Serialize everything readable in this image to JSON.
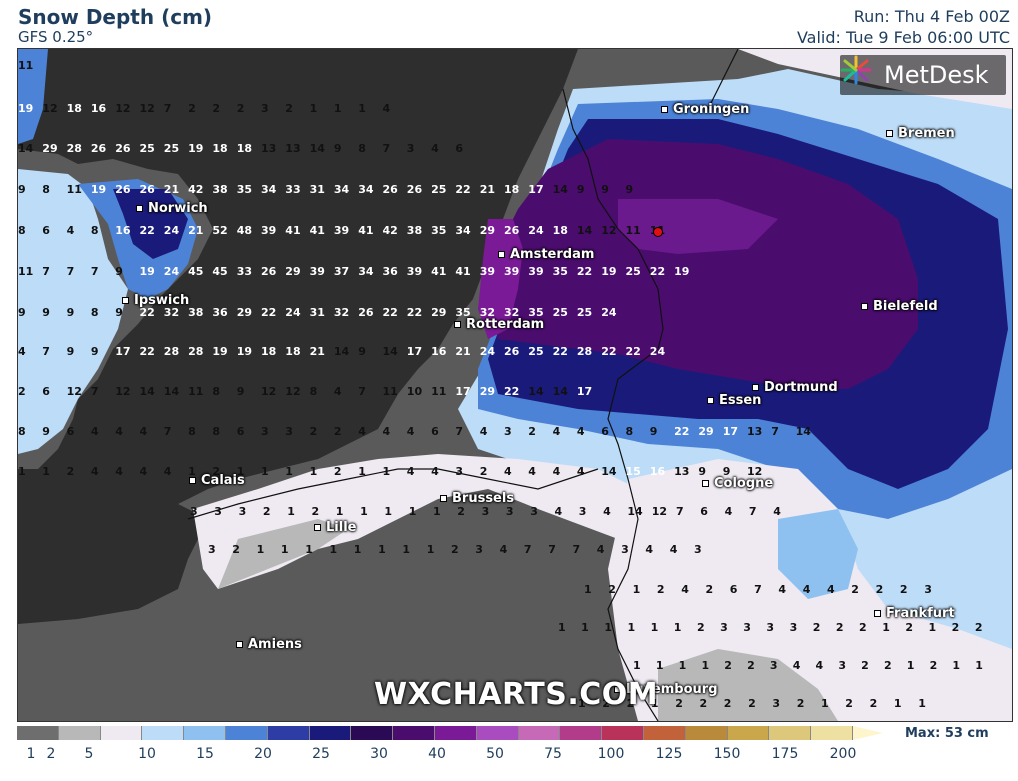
{
  "header": {
    "title": "Snow Depth (cm)",
    "subtitle": "GFS 0.25°",
    "run": "Run: Thu 4 Feb 00Z",
    "valid": "Valid: Tue 9 Feb 06:00 UTC"
  },
  "branding": {
    "logo_text": "MetDesk",
    "watermark": "WXCHARTS.COM",
    "logo_icon": "metdesk-burst-icon"
  },
  "cities": [
    {
      "name": "Groningen"
    },
    {
      "name": "Bremen"
    },
    {
      "name": "Norwich"
    },
    {
      "name": "Amsterdam"
    },
    {
      "name": "Ipswich"
    },
    {
      "name": "Rotterdam"
    },
    {
      "name": "Bielefeld"
    },
    {
      "name": "Dortmund"
    },
    {
      "name": "Essen"
    },
    {
      "name": "Calais"
    },
    {
      "name": "Brussels"
    },
    {
      "name": "Cologne"
    },
    {
      "name": "Lille"
    },
    {
      "name": "Frankfurt"
    },
    {
      "name": "Amiens"
    },
    {
      "name": "Luxembourg"
    }
  ],
  "colors": {
    "land_bare": "#5a5a5a",
    "sea": "#2e2e2e",
    "snow_1": "#b8b8b8",
    "snow_2": "#efe9f2",
    "snow_5": "#bcdcf7",
    "snow_10": "#8fc1f0",
    "snow_15": "#4d83d6",
    "snow_20": "#2e3da6",
    "snow_25": "#1a1a7a",
    "snow_30": "#3a1466",
    "snow_40": "#6a1a8c",
    "snow_50": "#9b3ab8"
  },
  "legend": {
    "ticks": [
      "1",
      "2",
      "5",
      "10",
      "15",
      "20",
      "25",
      "30",
      "40",
      "50",
      "75",
      "100",
      "125",
      "150",
      "175",
      "200"
    ],
    "colors": [
      "#6e6e6e",
      "#b8b8b8",
      "#efe9f2",
      "#bcdcf7",
      "#8fc1f0",
      "#4d83d6",
      "#2e3da6",
      "#1a1a7a",
      "#2a0a55",
      "#4a0d6e",
      "#7a1a96",
      "#a84cc0",
      "#c66ab8",
      "#b23c8a",
      "#b8325a",
      "#c2623a",
      "#b88a3a",
      "#c9a74a",
      "#dcc77a",
      "#ede0a0"
    ],
    "max_label": "Max: 53 cm"
  },
  "grid_values": [
    [
      "11"
    ],
    [
      "19",
      "12",
      "18",
      "16",
      "12",
      "12",
      "7",
      "2",
      "2",
      "2",
      "3",
      "2",
      "1",
      "1",
      "1",
      "4"
    ],
    [
      "14",
      "29",
      "28",
      "26",
      "26",
      "25",
      "25",
      "19",
      "18",
      "18",
      "13",
      "13",
      "14",
      "9",
      "8",
      "7",
      "3",
      "4",
      "6"
    ],
    [
      "9",
      "8",
      "11",
      "19",
      "26",
      "26",
      "21",
      "42",
      "38",
      "35",
      "34",
      "33",
      "31",
      "34",
      "34",
      "26",
      "26",
      "25",
      "22",
      "21",
      "18",
      "17",
      "14",
      "9",
      "9",
      "9"
    ],
    [
      "8",
      "6",
      "4",
      "8",
      "16",
      "22",
      "24",
      "21",
      "52",
      "48",
      "39",
      "41",
      "41",
      "39",
      "41",
      "42",
      "38",
      "35",
      "34",
      "29",
      "26",
      "24",
      "18",
      "14",
      "12",
      "11",
      "11"
    ],
    [
      "11",
      "7",
      "7",
      "7",
      "9",
      "19",
      "24",
      "45",
      "45",
      "33",
      "26",
      "29",
      "39",
      "37",
      "34",
      "36",
      "39",
      "41",
      "41",
      "39",
      "39",
      "39",
      "35",
      "22",
      "19",
      "25",
      "22",
      "19"
    ],
    [
      "9",
      "9",
      "9",
      "8",
      "9",
      "22",
      "32",
      "38",
      "36",
      "29",
      "22",
      "24",
      "31",
      "32",
      "26",
      "22",
      "22",
      "29",
      "35",
      "32",
      "32",
      "35",
      "25",
      "25",
      "24"
    ],
    [
      "4",
      "7",
      "9",
      "9",
      "17",
      "22",
      "28",
      "28",
      "19",
      "19",
      "18",
      "18",
      "21",
      "14",
      "9",
      "14",
      "17",
      "16",
      "21",
      "24",
      "26",
      "25",
      "22",
      "28",
      "22",
      "22",
      "24"
    ],
    [
      "2",
      "6",
      "12",
      "7",
      "12",
      "14",
      "14",
      "11",
      "8",
      "9",
      "12",
      "12",
      "8",
      "4",
      "7",
      "11",
      "10",
      "11",
      "17",
      "29",
      "22",
      "14",
      "14",
      "17"
    ],
    [
      "8",
      "9",
      "6",
      "4",
      "4",
      "4",
      "7",
      "8",
      "8",
      "6",
      "3",
      "3",
      "2",
      "2",
      "4",
      "4",
      "4",
      "6",
      "7",
      "4",
      "3",
      "2",
      "4",
      "4",
      "6",
      "8",
      "9",
      "22",
      "29",
      "17",
      "13",
      "7",
      "14"
    ],
    [
      "1",
      "1",
      "2",
      "4",
      "4",
      "4",
      "4",
      "1",
      "2",
      "1",
      "1",
      "1",
      "1",
      "2",
      "1",
      "1",
      "4",
      "4",
      "3",
      "2",
      "4",
      "4",
      "4",
      "4",
      "14",
      "15",
      "16",
      "13",
      "9",
      "9",
      "12"
    ],
    [
      "3",
      "3",
      "3",
      "2",
      "1",
      "2",
      "1",
      "1",
      "1",
      "1",
      "1",
      "2",
      "3",
      "3",
      "3",
      "4",
      "3",
      "4",
      "14",
      "12",
      "7",
      "6",
      "4",
      "7",
      "4"
    ],
    [
      "3",
      "2",
      "1",
      "1",
      "1",
      "1",
      "1",
      "1",
      "1",
      "1",
      "2",
      "3",
      "4",
      "7",
      "7",
      "7",
      "4",
      "3",
      "4",
      "4",
      "3"
    ],
    [
      "1",
      "2",
      "1",
      "2",
      "4",
      "2",
      "6",
      "7",
      "4",
      "4",
      "4",
      "2",
      "2",
      "2",
      "3"
    ],
    [
      "1",
      "1",
      "1",
      "1",
      "1",
      "1",
      "2",
      "3",
      "3",
      "3",
      "3",
      "2",
      "2",
      "2",
      "1",
      "2",
      "1",
      "2",
      "2"
    ],
    [
      "1",
      "1",
      "1",
      "1",
      "2",
      "2",
      "3",
      "4",
      "4",
      "3",
      "2",
      "2",
      "1",
      "2",
      "1",
      "1"
    ],
    [
      "1",
      "2",
      "2",
      "1",
      "2",
      "2",
      "2",
      "2",
      "3",
      "2",
      "1",
      "2",
      "2",
      "1",
      "1"
    ]
  ]
}
